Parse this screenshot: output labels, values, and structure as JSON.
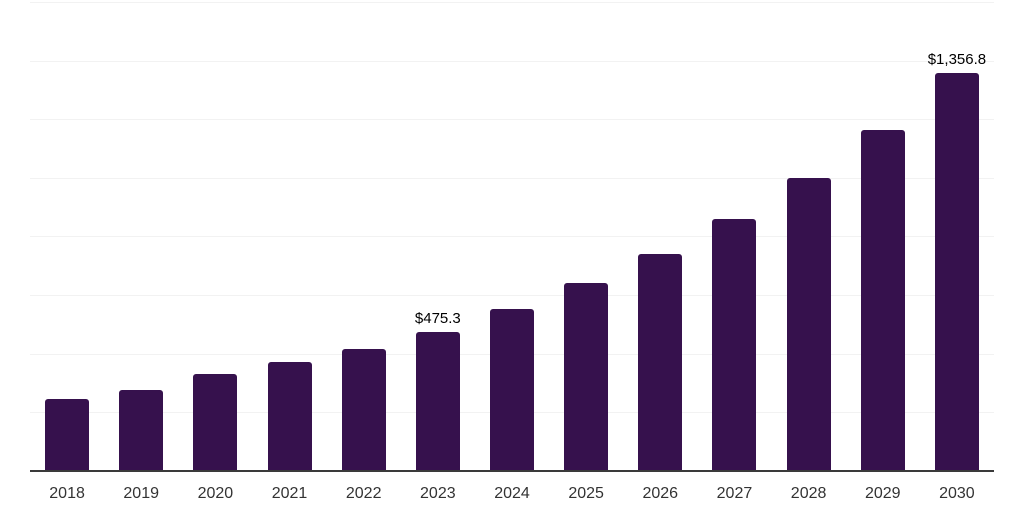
{
  "chart_data": {
    "type": "bar",
    "title": "",
    "xlabel": "",
    "ylabel": "",
    "categories": [
      "2018",
      "2019",
      "2020",
      "2021",
      "2022",
      "2023",
      "2024",
      "2025",
      "2026",
      "2027",
      "2028",
      "2029",
      "2030"
    ],
    "values": [
      244,
      278,
      330,
      372,
      415,
      475.3,
      552,
      640,
      742,
      860,
      1000,
      1165,
      1356.8
    ],
    "data_labels": [
      "",
      "",
      "",
      "",
      "",
      "$475.3",
      "",
      "",
      "",
      "",
      "",
      "",
      "$1,356.8"
    ],
    "value_prefix": "$",
    "ylim": [
      0,
      1600
    ],
    "gridline_interval": 200,
    "grid": "horizontal",
    "legend": "none",
    "colors": {
      "bar": "#36114D",
      "gridline": "#f2f2f2",
      "axis_line": "#3a3a3a",
      "tick_label": "#333333",
      "data_label": "#000000",
      "background": "#ffffff"
    }
  }
}
